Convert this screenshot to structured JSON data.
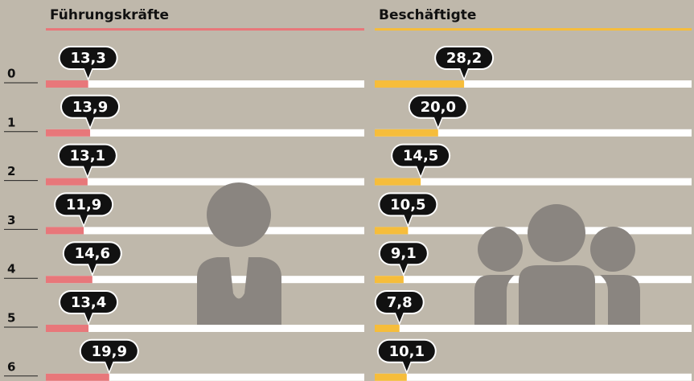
{
  "chart_data": {
    "type": "bar",
    "categories": [
      "0",
      "1",
      "2",
      "3",
      "4",
      "5",
      "6"
    ],
    "xlim": [
      0,
      100
    ],
    "series": [
      {
        "name": "Führungskräfte",
        "color": "#e8777a",
        "values": [
          13.3,
          13.9,
          13.1,
          11.9,
          14.6,
          13.4,
          19.9
        ],
        "value_labels": [
          "13,3",
          "13,9",
          "13,1",
          "11,9",
          "14,6",
          "13,4",
          "19,9"
        ]
      },
      {
        "name": "Beschäftigte",
        "color": "#f6bd3b",
        "values": [
          28.2,
          20.0,
          14.5,
          10.5,
          9.1,
          7.8,
          10.1
        ],
        "value_labels": [
          "28,2",
          "20,0",
          "14,5",
          "10,5",
          "9,1",
          "7,8",
          "10,1"
        ]
      }
    ]
  }
}
